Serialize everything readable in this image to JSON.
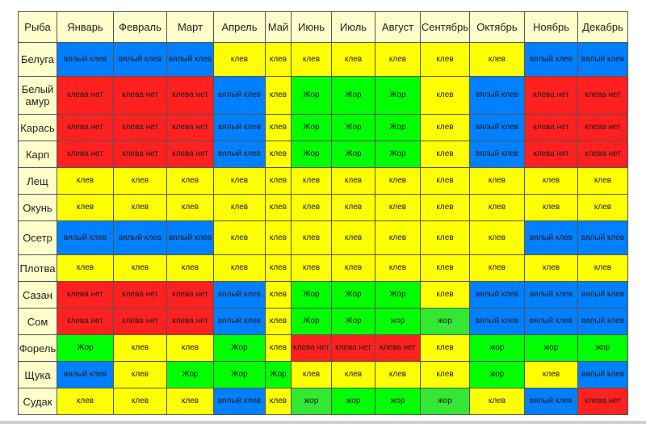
{
  "table": {
    "headers": [
      "Рыба",
      "Январь",
      "Февраль",
      "Март",
      "Апрель",
      "Май",
      "Июнь",
      "Июль",
      "Август",
      "Сентябрь",
      "Октябрь",
      "Ноябрь",
      "Декабрь"
    ],
    "rows": [
      {
        "fish": "Белуга",
        "cells": [
          [
            "вялый клев",
            "vyal"
          ],
          [
            "вялый клев",
            "vyal"
          ],
          [
            "вялый клев",
            "vyal"
          ],
          [
            "клев",
            "klev"
          ],
          [
            "клев",
            "klev"
          ],
          [
            "клев",
            "klev"
          ],
          [
            "клев",
            "klev"
          ],
          [
            "клев",
            "klev"
          ],
          [
            "клев",
            "klev"
          ],
          [
            "клев",
            "klev"
          ],
          [
            "вялый клев",
            "vyal"
          ],
          [
            "вялый клев",
            "vyal"
          ]
        ]
      },
      {
        "fish": "Белый амур",
        "cells": [
          [
            "клева нет",
            "net"
          ],
          [
            "клева нет",
            "net"
          ],
          [
            "клева нет",
            "net"
          ],
          [
            "вялый клев",
            "vyal"
          ],
          [
            "клев",
            "klev"
          ],
          [
            "Жор",
            "zhor"
          ],
          [
            "Жор",
            "zhor"
          ],
          [
            "Жор",
            "zhor"
          ],
          [
            "клев",
            "klev"
          ],
          [
            "вялый клев",
            "vyal"
          ],
          [
            "клева нет",
            "net"
          ],
          [
            "клева нет",
            "net"
          ]
        ]
      },
      {
        "fish": "Карась",
        "cells": [
          [
            "клева нет",
            "net"
          ],
          [
            "клева нет",
            "net"
          ],
          [
            "клева нет",
            "net"
          ],
          [
            "вялый клев",
            "vyal"
          ],
          [
            "клев",
            "klev"
          ],
          [
            "Жор",
            "zhor"
          ],
          [
            "Жор",
            "zhor"
          ],
          [
            "Жор",
            "zhor"
          ],
          [
            "клев",
            "klev"
          ],
          [
            "вялый клев",
            "vyal"
          ],
          [
            "клева нет",
            "net"
          ],
          [
            "клева нет",
            "net"
          ]
        ]
      },
      {
        "fish": "Карп",
        "cells": [
          [
            "клева нет",
            "net"
          ],
          [
            "клева нет",
            "net"
          ],
          [
            "клева нет",
            "net"
          ],
          [
            "вялый клев",
            "vyal"
          ],
          [
            "клев",
            "klev"
          ],
          [
            "Жор",
            "zhor"
          ],
          [
            "Жор",
            "zhor"
          ],
          [
            "Жор",
            "zhor"
          ],
          [
            "клев",
            "klev"
          ],
          [
            "вялый клев",
            "vyal"
          ],
          [
            "клева нет",
            "net"
          ],
          [
            "клева нет",
            "net"
          ]
        ]
      },
      {
        "fish": "Лещ",
        "cells": [
          [
            "клев",
            "klev"
          ],
          [
            "клев",
            "klev"
          ],
          [
            "клев",
            "klev"
          ],
          [
            "клев",
            "klev"
          ],
          [
            "клев",
            "klev"
          ],
          [
            "клев",
            "klev"
          ],
          [
            "клев",
            "klev"
          ],
          [
            "клев",
            "klev"
          ],
          [
            "клев",
            "klev"
          ],
          [
            "клев",
            "klev"
          ],
          [
            "клев",
            "klev"
          ],
          [
            "клев",
            "klev"
          ]
        ]
      },
      {
        "fish": "Окунь",
        "cells": [
          [
            "клев",
            "klev"
          ],
          [
            "клев",
            "klev"
          ],
          [
            "клев",
            "klev"
          ],
          [
            "клев",
            "klev"
          ],
          [
            "клев",
            "klev"
          ],
          [
            "клев",
            "klev"
          ],
          [
            "клев",
            "klev"
          ],
          [
            "клев",
            "klev"
          ],
          [
            "клев",
            "klev"
          ],
          [
            "клев",
            "klev"
          ],
          [
            "клев",
            "klev"
          ],
          [
            "клев",
            "klev"
          ]
        ]
      },
      {
        "fish": "Осетр",
        "cells": [
          [
            "вялый клев",
            "vyal"
          ],
          [
            "вялый клев",
            "vyal"
          ],
          [
            "вялый клев",
            "vyal"
          ],
          [
            "клев",
            "klev"
          ],
          [
            "клев",
            "klev"
          ],
          [
            "клев",
            "klev"
          ],
          [
            "клев",
            "klev"
          ],
          [
            "клев",
            "klev"
          ],
          [
            "клев",
            "klev"
          ],
          [
            "клев",
            "klev"
          ],
          [
            "вялый клев",
            "vyal"
          ],
          [
            "вялый клев",
            "vyal"
          ]
        ]
      },
      {
        "fish": "Плотва",
        "cells": [
          [
            "клев",
            "klev"
          ],
          [
            "клев",
            "klev"
          ],
          [
            "клев",
            "klev"
          ],
          [
            "клев",
            "klev"
          ],
          [
            "клев",
            "klev"
          ],
          [
            "клев",
            "klev"
          ],
          [
            "клев",
            "klev"
          ],
          [
            "клев",
            "klev"
          ],
          [
            "клев",
            "klev"
          ],
          [
            "клев",
            "klev"
          ],
          [
            "клев",
            "klev"
          ],
          [
            "клев",
            "klev"
          ]
        ]
      },
      {
        "fish": "Сазан",
        "cells": [
          [
            "клева нет",
            "net"
          ],
          [
            "клева нет",
            "net"
          ],
          [
            "клева нет",
            "net"
          ],
          [
            "вялый клев",
            "vyal"
          ],
          [
            "клев",
            "klev"
          ],
          [
            "Жор",
            "zhor"
          ],
          [
            "Жор",
            "zhor"
          ],
          [
            "Жор",
            "zhor"
          ],
          [
            "клев",
            "klev"
          ],
          [
            "вялый клев",
            "vyal"
          ],
          [
            "вялый клев",
            "vyal"
          ],
          [
            "вялый клев",
            "vyal"
          ]
        ]
      },
      {
        "fish": "Сом",
        "cells": [
          [
            "клева нет",
            "net"
          ],
          [
            "клева нет",
            "net"
          ],
          [
            "клева нет",
            "net"
          ],
          [
            "вялый клев",
            "vyal"
          ],
          [
            "клев",
            "klev"
          ],
          [
            "Жор",
            "zhor"
          ],
          [
            "Жор",
            "zhor"
          ],
          [
            "жор",
            "zhor"
          ],
          [
            "жор",
            "zhor-lt"
          ],
          [
            "вялый клев",
            "vyal"
          ],
          [
            "вялый клев",
            "vyal"
          ],
          [
            "вялый клев",
            "vyal"
          ]
        ]
      },
      {
        "fish": "Форель",
        "cells": [
          [
            "Жор",
            "zhor"
          ],
          [
            "клев",
            "klev"
          ],
          [
            "клев",
            "klev"
          ],
          [
            "Жор",
            "zhor"
          ],
          [
            "клев",
            "klev"
          ],
          [
            "клева нет",
            "net"
          ],
          [
            "клева нет",
            "net"
          ],
          [
            "клева нет",
            "net"
          ],
          [
            "клев",
            "klev"
          ],
          [
            "жор",
            "zhor"
          ],
          [
            "жор",
            "zhor"
          ],
          [
            "жор",
            "zhor"
          ]
        ]
      },
      {
        "fish": "Щука",
        "cells": [
          [
            "вялый клев",
            "vyal"
          ],
          [
            "клев",
            "klev"
          ],
          [
            "Жор",
            "zhor"
          ],
          [
            "Жор",
            "zhor"
          ],
          [
            "Жор",
            "zhor"
          ],
          [
            "клев",
            "klev"
          ],
          [
            "клев",
            "klev"
          ],
          [
            "клев",
            "klev"
          ],
          [
            "клев",
            "klev"
          ],
          [
            "жор",
            "zhor"
          ],
          [
            "клев",
            "klev"
          ],
          [
            "вялый клев",
            "vyal"
          ]
        ]
      },
      {
        "fish": "Судак",
        "cells": [
          [
            "клев",
            "klev"
          ],
          [
            "клев",
            "klev"
          ],
          [
            "клев",
            "klev"
          ],
          [
            "вялый клев",
            "vyal"
          ],
          [
            "клев",
            "klev"
          ],
          [
            "жор",
            "zhor-lt"
          ],
          [
            "жор",
            "zhor"
          ],
          [
            "жор",
            "zhor"
          ],
          [
            "жор",
            "zhor-lt"
          ],
          [
            "клев",
            "klev"
          ],
          [
            "вялый клев",
            "vyal"
          ],
          [
            "клева нет",
            "net"
          ]
        ]
      }
    ]
  },
  "status_colors": {
    "klev": "#ffff00",
    "vyal": "#0080ff",
    "net": "#ff2020",
    "zhor": "#00ff00",
    "zhor-lt": "#33e833",
    "header_bg": "#ffffcc"
  }
}
